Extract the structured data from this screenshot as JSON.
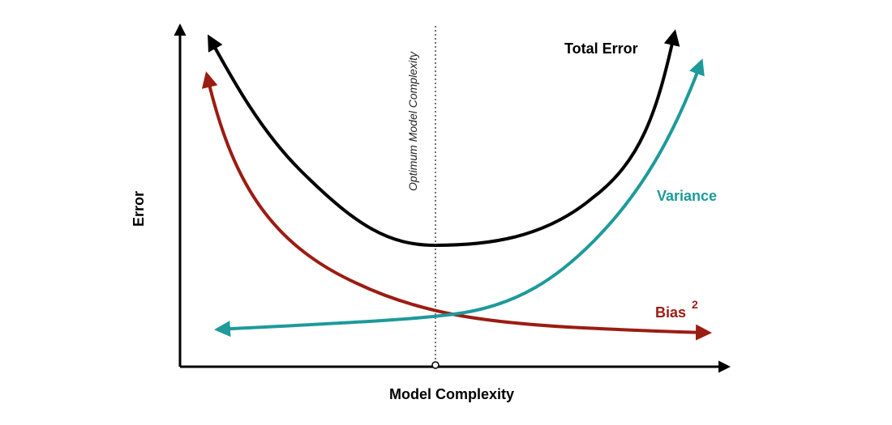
{
  "labels": {
    "total_error": "Total Error",
    "variance": "Variance",
    "bias": "Bias",
    "bias_exponent": "2",
    "y_axis": "Error",
    "x_axis": "Model Complexity",
    "optimum": "Optimum Model Complexity"
  }
}
